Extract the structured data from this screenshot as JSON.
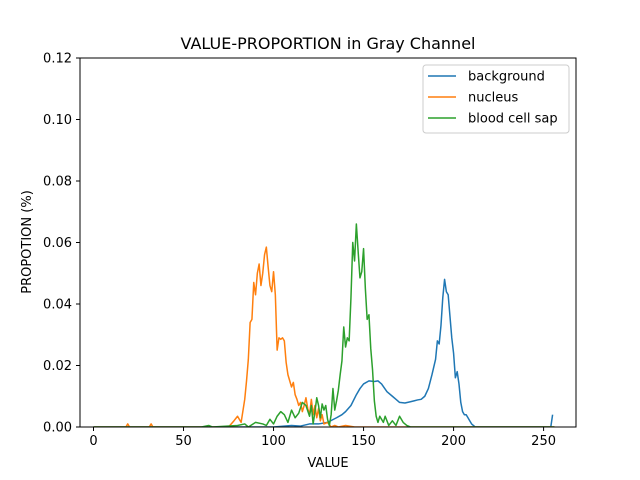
{
  "chart_data": {
    "type": "line",
    "title": "VALUE-PROPORTION in Gray Channel",
    "xlabel": "VALUE",
    "ylabel": "PROPOTION (%)",
    "xlim": [
      -7.5,
      268
    ],
    "ylim": [
      0,
      0.12
    ],
    "x_ticks": [
      0,
      50,
      100,
      150,
      200,
      250
    ],
    "x_tick_labels": [
      "0",
      "50",
      "100",
      "150",
      "200",
      "250"
    ],
    "y_ticks": [
      0,
      0.02,
      0.04,
      0.06,
      0.08,
      0.1,
      0.12
    ],
    "y_tick_labels": [
      "0.00",
      "0.02",
      "0.04",
      "0.06",
      "0.08",
      "0.10",
      "0.12"
    ],
    "grid": false,
    "legend_position": "top-right",
    "series": [
      {
        "name": "background",
        "color": "#1f77b4",
        "points": [
          [
            0,
            0
          ],
          [
            100,
            0
          ],
          [
            110,
            0.0005
          ],
          [
            115,
            0.0003
          ],
          [
            120,
            0.001
          ],
          [
            125,
            0.001
          ],
          [
            130,
            0.0015
          ],
          [
            135,
            0.003
          ],
          [
            138,
            0.004
          ],
          [
            140,
            0.005
          ],
          [
            143,
            0.007
          ],
          [
            146,
            0.0105
          ],
          [
            148,
            0.0125
          ],
          [
            150,
            0.014
          ],
          [
            153,
            0.015
          ],
          [
            156,
            0.0148
          ],
          [
            158,
            0.015
          ],
          [
            160,
            0.014
          ],
          [
            163,
            0.0115
          ],
          [
            166,
            0.01
          ],
          [
            168,
            0.009
          ],
          [
            170,
            0.008
          ],
          [
            173,
            0.0078
          ],
          [
            176,
            0.0082
          ],
          [
            178,
            0.0085
          ],
          [
            180,
            0.0088
          ],
          [
            182,
            0.009
          ],
          [
            184,
            0.01
          ],
          [
            186,
            0.0125
          ],
          [
            188,
            0.017
          ],
          [
            190,
            0.022
          ],
          [
            191,
            0.028
          ],
          [
            192,
            0.027
          ],
          [
            193,
            0.033
          ],
          [
            194,
            0.042
          ],
          [
            195,
            0.048
          ],
          [
            196,
            0.044
          ],
          [
            197,
            0.043
          ],
          [
            198,
            0.036
          ],
          [
            199,
            0.029
          ],
          [
            200,
            0.024
          ],
          [
            201,
            0.016
          ],
          [
            202,
            0.018
          ],
          [
            203,
            0.014
          ],
          [
            204,
            0.008
          ],
          [
            205,
            0.005
          ],
          [
            206,
            0.004
          ],
          [
            207,
            0.004
          ],
          [
            208,
            0.003
          ],
          [
            209,
            0.002
          ],
          [
            210,
            0.001
          ],
          [
            212,
            0
          ],
          [
            254,
            0
          ],
          [
            255,
            0.004
          ]
        ]
      },
      {
        "name": "nucleus",
        "color": "#ff7f0e",
        "points": [
          [
            0,
            0
          ],
          [
            18,
            0
          ],
          [
            19,
            0.001
          ],
          [
            20,
            0
          ],
          [
            31,
            0
          ],
          [
            32,
            0.001
          ],
          [
            33,
            0
          ],
          [
            60,
            0
          ],
          [
            70,
            0
          ],
          [
            75,
            0
          ],
          [
            78,
            0.002
          ],
          [
            80,
            0.0035
          ],
          [
            82,
            0.0015
          ],
          [
            84,
            0.009
          ],
          [
            85,
            0.015
          ],
          [
            86,
            0.022
          ],
          [
            87,
            0.034
          ],
          [
            88,
            0.035
          ],
          [
            89,
            0.047
          ],
          [
            90,
            0.043
          ],
          [
            91,
            0.05
          ],
          [
            92,
            0.053
          ],
          [
            93,
            0.046
          ],
          [
            94,
            0.05
          ],
          [
            95,
            0.056
          ],
          [
            96,
            0.0585
          ],
          [
            97,
            0.052
          ],
          [
            98,
            0.046
          ],
          [
            99,
            0.044
          ],
          [
            100,
            0.0505
          ],
          [
            101,
            0.043
          ],
          [
            102,
            0.025
          ],
          [
            103,
            0.029
          ],
          [
            104,
            0.0285
          ],
          [
            105,
            0.029
          ],
          [
            106,
            0.028
          ],
          [
            107,
            0.021
          ],
          [
            108,
            0.017
          ],
          [
            109,
            0.015
          ],
          [
            110,
            0.013
          ],
          [
            111,
            0.0145
          ],
          [
            112,
            0.0105
          ],
          [
            113,
            0.009
          ],
          [
            114,
            0.007
          ],
          [
            115,
            0.008
          ],
          [
            116,
            0.005
          ],
          [
            117,
            0.007
          ],
          [
            118,
            0.0095
          ],
          [
            119,
            0.006
          ],
          [
            120,
            0.004
          ],
          [
            121,
            0.009
          ],
          [
            122,
            0.004
          ],
          [
            123,
            0.007
          ],
          [
            124,
            0.003
          ],
          [
            125,
            0.006
          ],
          [
            126,
            0.002
          ],
          [
            127,
            0.004
          ],
          [
            128,
            0.001
          ],
          [
            130,
            0.0015
          ],
          [
            132,
            0
          ],
          [
            134,
            0.0005
          ],
          [
            136,
            0
          ],
          [
            140,
            0.0005
          ],
          [
            145,
            0
          ],
          [
            256,
            0
          ]
        ]
      },
      {
        "name": "blood cell sap",
        "color": "#2ca02c",
        "points": [
          [
            0,
            0
          ],
          [
            60,
            0
          ],
          [
            64,
            0.0005
          ],
          [
            66,
            0
          ],
          [
            80,
            0.0005
          ],
          [
            84,
            0.001
          ],
          [
            86,
            0
          ],
          [
            90,
            0.0015
          ],
          [
            94,
            0.001
          ],
          [
            96,
            0.0005
          ],
          [
            98,
            0.0025
          ],
          [
            100,
            0.001
          ],
          [
            102,
            0.0035
          ],
          [
            104,
            0.005
          ],
          [
            106,
            0.004
          ],
          [
            108,
            0.0015
          ],
          [
            110,
            0.0055
          ],
          [
            112,
            0.003
          ],
          [
            114,
            0.0045
          ],
          [
            116,
            0.008
          ],
          [
            118,
            0.007
          ],
          [
            120,
            0.0035
          ],
          [
            121,
            0.007
          ],
          [
            122,
            0.001
          ],
          [
            123,
            0.005
          ],
          [
            124,
            0.0095
          ],
          [
            125,
            0.007
          ],
          [
            126,
            0.003
          ],
          [
            127,
            0.0075
          ],
          [
            128,
            0.0055
          ],
          [
            129,
            0.007
          ],
          [
            130,
            0.0025
          ],
          [
            131,
            0.0005
          ],
          [
            132,
            0.004
          ],
          [
            133,
            0.0125
          ],
          [
            134,
            0.0055
          ],
          [
            135,
            0.0085
          ],
          [
            136,
            0.012
          ],
          [
            137,
            0.017
          ],
          [
            138,
            0.0215
          ],
          [
            139,
            0.0325
          ],
          [
            140,
            0.026
          ],
          [
            141,
            0.029
          ],
          [
            142,
            0.028
          ],
          [
            143,
            0.042
          ],
          [
            144,
            0.06
          ],
          [
            145,
            0.054
          ],
          [
            146,
            0.066
          ],
          [
            147,
            0.057
          ],
          [
            148,
            0.0485
          ],
          [
            149,
            0.0505
          ],
          [
            150,
            0.058
          ],
          [
            151,
            0.045
          ],
          [
            152,
            0.035
          ],
          [
            153,
            0.0365
          ],
          [
            154,
            0.0255
          ],
          [
            155,
            0.0185
          ],
          [
            156,
            0.0085
          ],
          [
            157,
            0.0035
          ],
          [
            158,
            0.0015
          ],
          [
            159,
            0.0035
          ],
          [
            160,
            0.0025
          ],
          [
            161,
            0.0015
          ],
          [
            162,
            0.0035
          ],
          [
            164,
            0.0005
          ],
          [
            166,
            0.002
          ],
          [
            168,
            0.0005
          ],
          [
            170,
            0.0035
          ],
          [
            172,
            0.0015
          ],
          [
            174,
            0.0005
          ],
          [
            176,
            0
          ],
          [
            256,
            0
          ]
        ]
      }
    ]
  }
}
